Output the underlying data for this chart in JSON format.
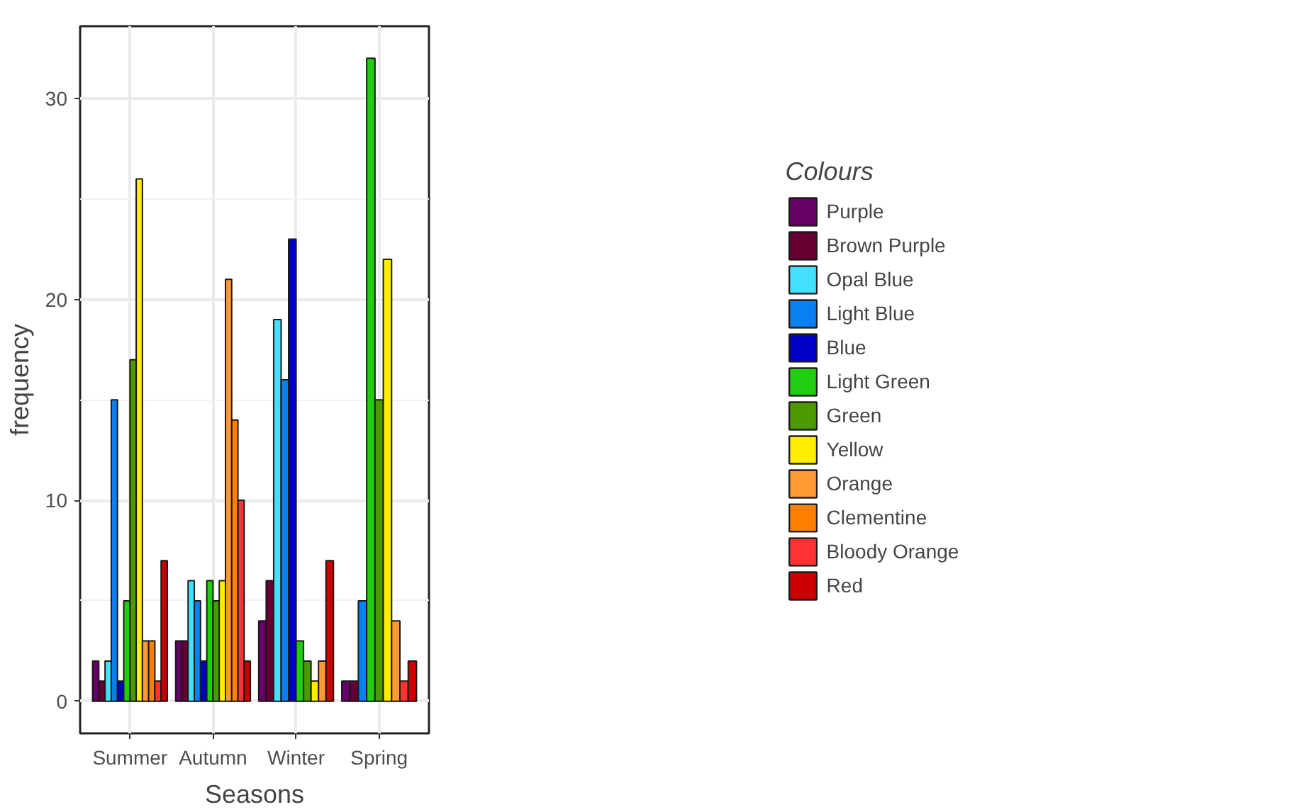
{
  "chart_data": {
    "type": "bar",
    "xlabel": "Seasons",
    "ylabel": "frequency",
    "legend_title": "Colours",
    "categories": [
      "Summer",
      "Autumn",
      "Winter",
      "Spring"
    ],
    "series": [
      {
        "name": "Purple",
        "color": "#660066",
        "values": [
          2,
          3,
          4,
          1
        ]
      },
      {
        "name": "Brown Purple",
        "color": "#660033",
        "values": [
          1,
          3,
          6,
          1
        ]
      },
      {
        "name": "Opal Blue",
        "color": "#44e0ff",
        "values": [
          2,
          6,
          19,
          null
        ]
      },
      {
        "name": "Light Blue",
        "color": "#0a80f0",
        "values": [
          15,
          5,
          16,
          5
        ]
      },
      {
        "name": "Blue",
        "color": "#0000c8",
        "values": [
          1,
          2,
          23,
          null
        ]
      },
      {
        "name": "Light Green",
        "color": "#22cc11",
        "values": [
          5,
          6,
          3,
          32
        ]
      },
      {
        "name": "Green",
        "color": "#4c9900",
        "values": [
          17,
          5,
          2,
          15
        ]
      },
      {
        "name": "Yellow",
        "color": "#ffee00",
        "values": [
          26,
          6,
          1,
          22
        ]
      },
      {
        "name": "Orange",
        "color": "#ff9933",
        "values": [
          3,
          21,
          2,
          4
        ]
      },
      {
        "name": "Clementine",
        "color": "#ff8000",
        "values": [
          3,
          14,
          null,
          null
        ]
      },
      {
        "name": "Bloody Orange",
        "color": "#ff3333",
        "values": [
          1,
          10,
          null,
          1
        ]
      },
      {
        "name": "Red",
        "color": "#cc0000",
        "values": [
          7,
          2,
          7,
          2
        ]
      }
    ],
    "ylim": [
      -1.6,
      33.6
    ],
    "yticks": [
      0,
      10,
      20,
      30
    ],
    "grid": true,
    "legend": "right"
  }
}
